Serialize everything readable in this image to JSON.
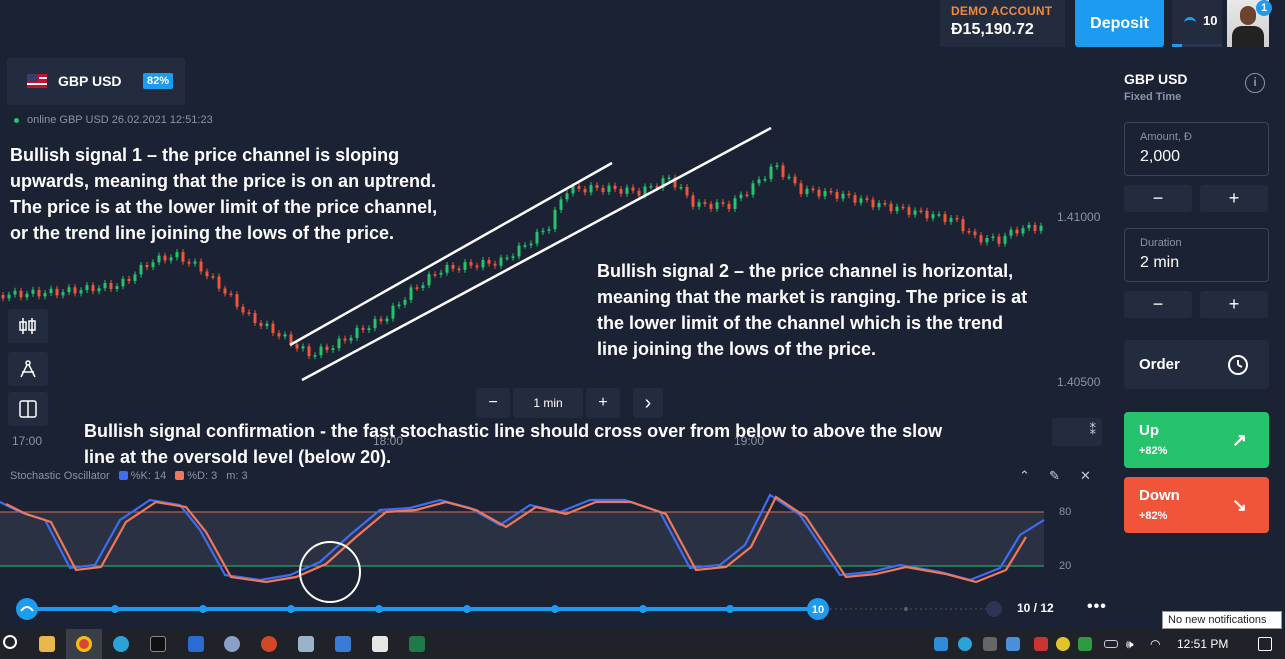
{
  "account": {
    "mode_label": "DEMO ACCOUNT",
    "balance": "Đ15,190.72",
    "deposit_label": "Deposit",
    "level": "10",
    "level_progress": 0.2,
    "notification_count": "1"
  },
  "asset": {
    "name": "GBP USD",
    "payout": "82%",
    "status_text": "online GBP USD  26.02.2021 12:51:23"
  },
  "chart": {
    "price_ticks": [
      "1.41000",
      "1.40500"
    ],
    "time_ticks": [
      "17:00",
      "18:00",
      "19:00"
    ],
    "timeframe": {
      "minus": "−",
      "value": "1 min",
      "plus": "+",
      "next": "›"
    },
    "tools": [
      "candlestick-icon",
      "drawing-tool-icon",
      "split-view-icon"
    ]
  },
  "annotations": {
    "signal1": [
      "Bullish signal 1 – the price channel is sloping",
      "upwards, meaning that the price is on an uptrend.",
      "The price is at the lower limit of the price channel,",
      "or the trend line joining the lows of the price."
    ],
    "signal2": [
      "Bullish signal 2 – the price channel is horizontal,",
      "meaning that the market is ranging. The price is at",
      "the lower limit of the channel which is the trend",
      "line joining the lows of the price."
    ],
    "confirmation": [
      "Bullish signal confirmation - the fast stochastic line should cross over from below to above the slow",
      "line at the oversold level (below 20)."
    ]
  },
  "stochastic": {
    "title": "Stochastic Oscillator",
    "k_label": "%K: 14",
    "d_label": "%D: 3",
    "m_label": "m: 3",
    "upper_level": "80",
    "lower_level": "20",
    "k_color": "#3d6df0",
    "d_color": "#f0775a"
  },
  "timeline": {
    "current": "10",
    "counter": "10 / 12",
    "more": "•••"
  },
  "trade_panel": {
    "asset_name": "GBP USD",
    "mode": "Fixed Time",
    "amount_label": "Amount, Đ",
    "amount_value": "2,000",
    "duration_label": "Duration",
    "duration_value": "2 min",
    "minus": "−",
    "plus": "+",
    "order_label": "Order",
    "up_label": "Up",
    "up_payout": "+82%",
    "down_label": "Down",
    "down_payout": "+82%"
  },
  "system": {
    "notification_tooltip": "No new notifications",
    "clock": "12:51 PM"
  },
  "colors": {
    "up": "#27c26c",
    "down": "#f0553a",
    "accent": "#1d9bf0",
    "background": "#1b2233"
  }
}
